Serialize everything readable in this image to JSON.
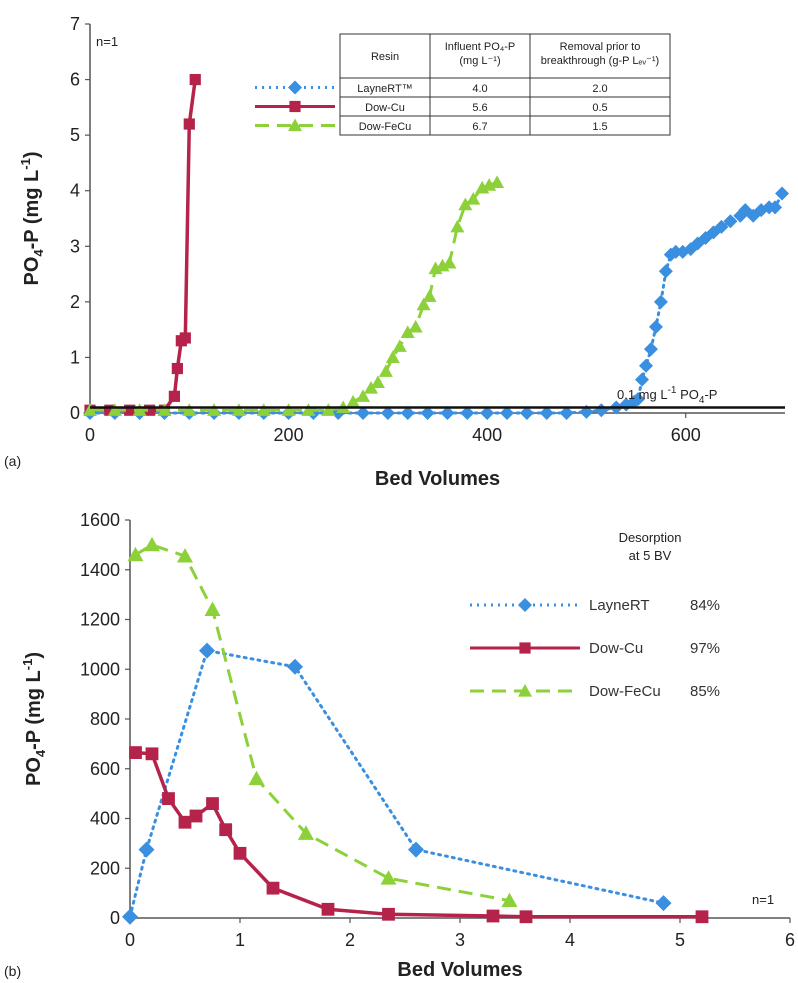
{
  "colors": {
    "LayneRT": "#3a8fe0",
    "Dow-Cu": "#b5234a",
    "Dow-FeCu": "#8cd13a",
    "axis": "#555555"
  },
  "chart_data": [
    {
      "panel": "(a)",
      "type": "line",
      "xlabel": "Bed Volumes",
      "ylabel_main": "PO",
      "ylabel_sub": "4",
      "ylabel_mid": "-P (mg L",
      "ylabel_sup": "-1",
      "ylabel_end": ")",
      "xlim": [
        0,
        700
      ],
      "ylim": [
        0,
        7
      ],
      "xticks": [
        0,
        200,
        400,
        600
      ],
      "yticks": [
        0,
        1,
        2,
        3,
        4,
        5,
        6,
        7
      ],
      "note": "n=1",
      "threshold": {
        "y": 0.1,
        "label": "0.1 mg L",
        "label_sup": "-1",
        "label_end": " PO",
        "label_sub": "4",
        "label_tail": "-P"
      },
      "table": {
        "headers": [
          [
            "Resin"
          ],
          [
            "Influent PO₄-P",
            "(mg L⁻¹)"
          ],
          [
            "Removal prior to",
            "breakthrough (g-P Lₑᵥ⁻¹)"
          ]
        ],
        "rows": [
          [
            "LayneRT™",
            "4.0",
            "2.0"
          ],
          [
            "Dow-Cu",
            "5.6",
            "0.5"
          ],
          [
            "Dow-FeCu",
            "6.7",
            "1.5"
          ]
        ]
      },
      "series": [
        {
          "name": "LayneRT™",
          "color_key": "LayneRT",
          "marker": "diamond",
          "dash": "dotted",
          "points": [
            [
              0,
              0
            ],
            [
              25,
              0
            ],
            [
              50,
              0
            ],
            [
              75,
              0
            ],
            [
              100,
              0
            ],
            [
              125,
              0
            ],
            [
              150,
              0
            ],
            [
              175,
              0
            ],
            [
              200,
              0
            ],
            [
              225,
              0
            ],
            [
              250,
              0
            ],
            [
              275,
              0
            ],
            [
              300,
              0
            ],
            [
              320,
              0
            ],
            [
              340,
              0
            ],
            [
              360,
              0
            ],
            [
              380,
              0
            ],
            [
              400,
              0
            ],
            [
              420,
              0
            ],
            [
              440,
              0
            ],
            [
              460,
              0
            ],
            [
              480,
              0
            ],
            [
              500,
              0.02
            ],
            [
              515,
              0.05
            ],
            [
              530,
              0.1
            ],
            [
              540,
              0.15
            ],
            [
              548,
              0.2
            ],
            [
              552,
              0.25
            ],
            [
              556,
              0.6
            ],
            [
              560,
              0.85
            ],
            [
              565,
              1.15
            ],
            [
              570,
              1.55
            ],
            [
              575,
              2.0
            ],
            [
              580,
              2.55
            ],
            [
              585,
              2.85
            ],
            [
              590,
              2.9
            ],
            [
              597,
              2.9
            ],
            [
              605,
              2.95
            ],
            [
              612,
              3.05
            ],
            [
              620,
              3.15
            ],
            [
              628,
              3.25
            ],
            [
              636,
              3.35
            ],
            [
              645,
              3.45
            ],
            [
              655,
              3.55
            ],
            [
              660,
              3.65
            ],
            [
              668,
              3.55
            ],
            [
              676,
              3.65
            ],
            [
              684,
              3.7
            ],
            [
              690,
              3.7
            ],
            [
              697,
              3.95
            ]
          ]
        },
        {
          "name": "Dow-Cu",
          "color_key": "Dow-Cu",
          "marker": "square",
          "dash": "solid",
          "points": [
            [
              0,
              0.05
            ],
            [
              20,
              0.05
            ],
            [
              40,
              0.05
            ],
            [
              60,
              0.05
            ],
            [
              75,
              0.05
            ],
            [
              85,
              0.3
            ],
            [
              88,
              0.8
            ],
            [
              92,
              1.3
            ],
            [
              96,
              1.35
            ],
            [
              100,
              5.2
            ],
            [
              106,
              6.0
            ]
          ]
        },
        {
          "name": "Dow-FeCu",
          "color_key": "Dow-FeCu",
          "marker": "triangle",
          "dash": "dashed",
          "points": [
            [
              0,
              0.05
            ],
            [
              25,
              0.05
            ],
            [
              50,
              0.05
            ],
            [
              75,
              0.05
            ],
            [
              100,
              0.05
            ],
            [
              125,
              0.05
            ],
            [
              150,
              0.05
            ],
            [
              175,
              0.05
            ],
            [
              200,
              0.05
            ],
            [
              220,
              0.05
            ],
            [
              240,
              0.05
            ],
            [
              255,
              0.1
            ],
            [
              265,
              0.2
            ],
            [
              275,
              0.3
            ],
            [
              283,
              0.45
            ],
            [
              290,
              0.55
            ],
            [
              298,
              0.75
            ],
            [
              305,
              1.0
            ],
            [
              312,
              1.2
            ],
            [
              320,
              1.45
            ],
            [
              328,
              1.55
            ],
            [
              336,
              1.95
            ],
            [
              342,
              2.1
            ],
            [
              348,
              2.6
            ],
            [
              355,
              2.65
            ],
            [
              362,
              2.7
            ],
            [
              370,
              3.35
            ],
            [
              378,
              3.75
            ],
            [
              386,
              3.85
            ],
            [
              395,
              4.05
            ],
            [
              402,
              4.1
            ],
            [
              410,
              4.15
            ]
          ]
        }
      ],
      "legend": [
        {
          "name": "LayneRT™",
          "color_key": "LayneRT",
          "marker": "diamond",
          "dash": "dotted"
        },
        {
          "name": "Dow-Cu",
          "color_key": "Dow-Cu",
          "marker": "square",
          "dash": "solid"
        },
        {
          "name": "Dow-FeCu",
          "color_key": "Dow-FeCu",
          "marker": "triangle",
          "dash": "dashed"
        }
      ]
    },
    {
      "panel": "(b)",
      "type": "line",
      "xlabel": "Bed Volumes",
      "ylabel_main": "PO",
      "ylabel_sub": "4",
      "ylabel_mid": "-P (mg L",
      "ylabel_sup": "-1",
      "ylabel_end": ")",
      "xlim": [
        0,
        6
      ],
      "ylim": [
        0,
        1600
      ],
      "xticks": [
        0,
        1,
        2,
        3,
        4,
        5,
        6
      ],
      "yticks": [
        0,
        200,
        400,
        600,
        800,
        1000,
        1200,
        1400,
        1600
      ],
      "note": "n=1",
      "legend_title": [
        "Desorption",
        "at 5 BV"
      ],
      "series": [
        {
          "name": "LayneRT",
          "pct": "84%",
          "color_key": "LayneRT",
          "marker": "diamond",
          "dash": "dotted",
          "points": [
            [
              0,
              5
            ],
            [
              0.15,
              275
            ],
            [
              0.7,
              1075
            ],
            [
              1.5,
              1010
            ],
            [
              2.6,
              275
            ],
            [
              4.85,
              60
            ]
          ]
        },
        {
          "name": "Dow-Cu",
          "pct": "97%",
          "color_key": "Dow-Cu",
          "marker": "square",
          "dash": "solid",
          "points": [
            [
              0.05,
              665
            ],
            [
              0.2,
              660
            ],
            [
              0.35,
              480
            ],
            [
              0.5,
              385
            ],
            [
              0.6,
              410
            ],
            [
              0.75,
              460
            ],
            [
              0.87,
              355
            ],
            [
              1.0,
              260
            ],
            [
              1.3,
              120
            ],
            [
              1.8,
              35
            ],
            [
              2.35,
              15
            ],
            [
              3.3,
              8
            ],
            [
              3.6,
              5
            ],
            [
              5.2,
              5
            ]
          ]
        },
        {
          "name": "Dow-FeCu",
          "pct": "85%",
          "color_key": "Dow-FeCu",
          "marker": "triangle",
          "dash": "dashed",
          "points": [
            [
              0.05,
              1460
            ],
            [
              0.2,
              1500
            ],
            [
              0.5,
              1455
            ],
            [
              0.75,
              1240
            ],
            [
              1.15,
              560
            ],
            [
              1.6,
              340
            ],
            [
              2.35,
              160
            ],
            [
              3.45,
              70
            ]
          ]
        }
      ]
    }
  ]
}
